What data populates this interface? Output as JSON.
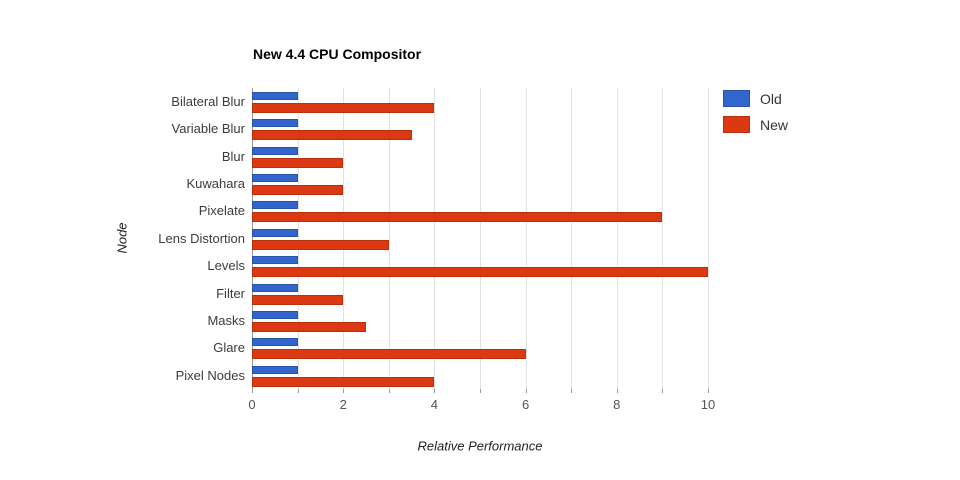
{
  "chart_data": {
    "type": "bar",
    "orientation": "horizontal",
    "title": "New 4.4 CPU Compositor",
    "xlabel": "Relative Performance",
    "ylabel": "Node",
    "xlim": [
      0,
      10
    ],
    "xtick_labels": [
      0,
      2,
      4,
      6,
      8,
      10
    ],
    "minor_gridline_step": 1,
    "grid": true,
    "legend_position": "top-right",
    "categories": [
      "Bilateral Blur",
      "Variable Blur",
      "Blur",
      "Kuwahara",
      "Pixelate",
      "Lens Distortion",
      "Levels",
      "Filter",
      "Masks",
      "Glare",
      "Pixel Nodes"
    ],
    "series": [
      {
        "name": "Old",
        "color": "#3366CC",
        "border_color": "#2A52A8",
        "values": [
          1,
          1,
          1,
          1,
          1,
          1,
          1,
          1,
          1,
          1,
          1
        ]
      },
      {
        "name": "New",
        "color": "#DC3912",
        "border_color": "#B8300C",
        "values": [
          4,
          3.5,
          2,
          2,
          9,
          3,
          10,
          2,
          2.5,
          6,
          4
        ]
      }
    ]
  }
}
